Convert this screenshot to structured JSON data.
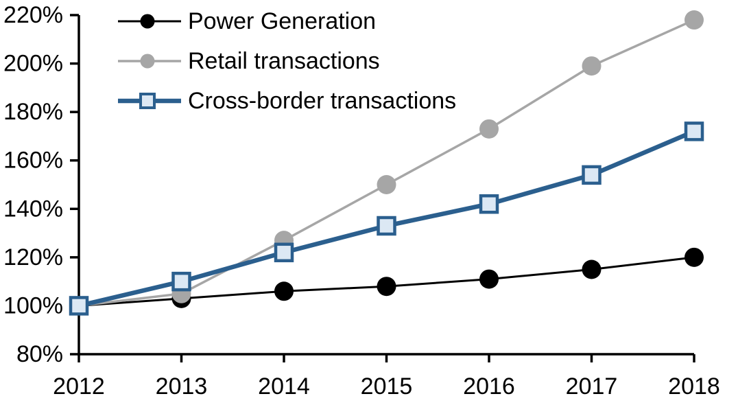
{
  "chart_data": {
    "type": "line",
    "title": "",
    "xlabel": "",
    "ylabel": "",
    "x_categories": [
      "2012",
      "2013",
      "2014",
      "2015",
      "2016",
      "2017",
      "2018"
    ],
    "series": [
      {
        "name": "Power Generation",
        "marker": "circle",
        "line_color": "#000000",
        "marker_fill": "#000000",
        "marker_stroke": "#000000",
        "values": [
          100,
          103,
          106,
          108,
          111,
          115,
          120
        ]
      },
      {
        "name": "Retail transactions",
        "marker": "circle",
        "line_color": "#A6A6A6",
        "marker_fill": "#A6A6A6",
        "marker_stroke": "#A6A6A6",
        "values": [
          100,
          105,
          127,
          150,
          173,
          199,
          218
        ]
      },
      {
        "name": "Cross-border transactions",
        "marker": "square",
        "line_color": "#2B5F8E",
        "marker_fill": "#DCE8F4",
        "marker_stroke": "#2B5F8E",
        "values": [
          100,
          110,
          122,
          133,
          142,
          154,
          172
        ]
      }
    ],
    "ylim": [
      80,
      220
    ],
    "ytick_step": 20,
    "ytick_labels": [
      "80%",
      "100%",
      "120%",
      "140%",
      "160%",
      "180%",
      "200%",
      "220%"
    ],
    "legend_position": "top-left-inside",
    "grid": false,
    "axis_color": "#000000",
    "background_color": "#FFFFFF"
  }
}
